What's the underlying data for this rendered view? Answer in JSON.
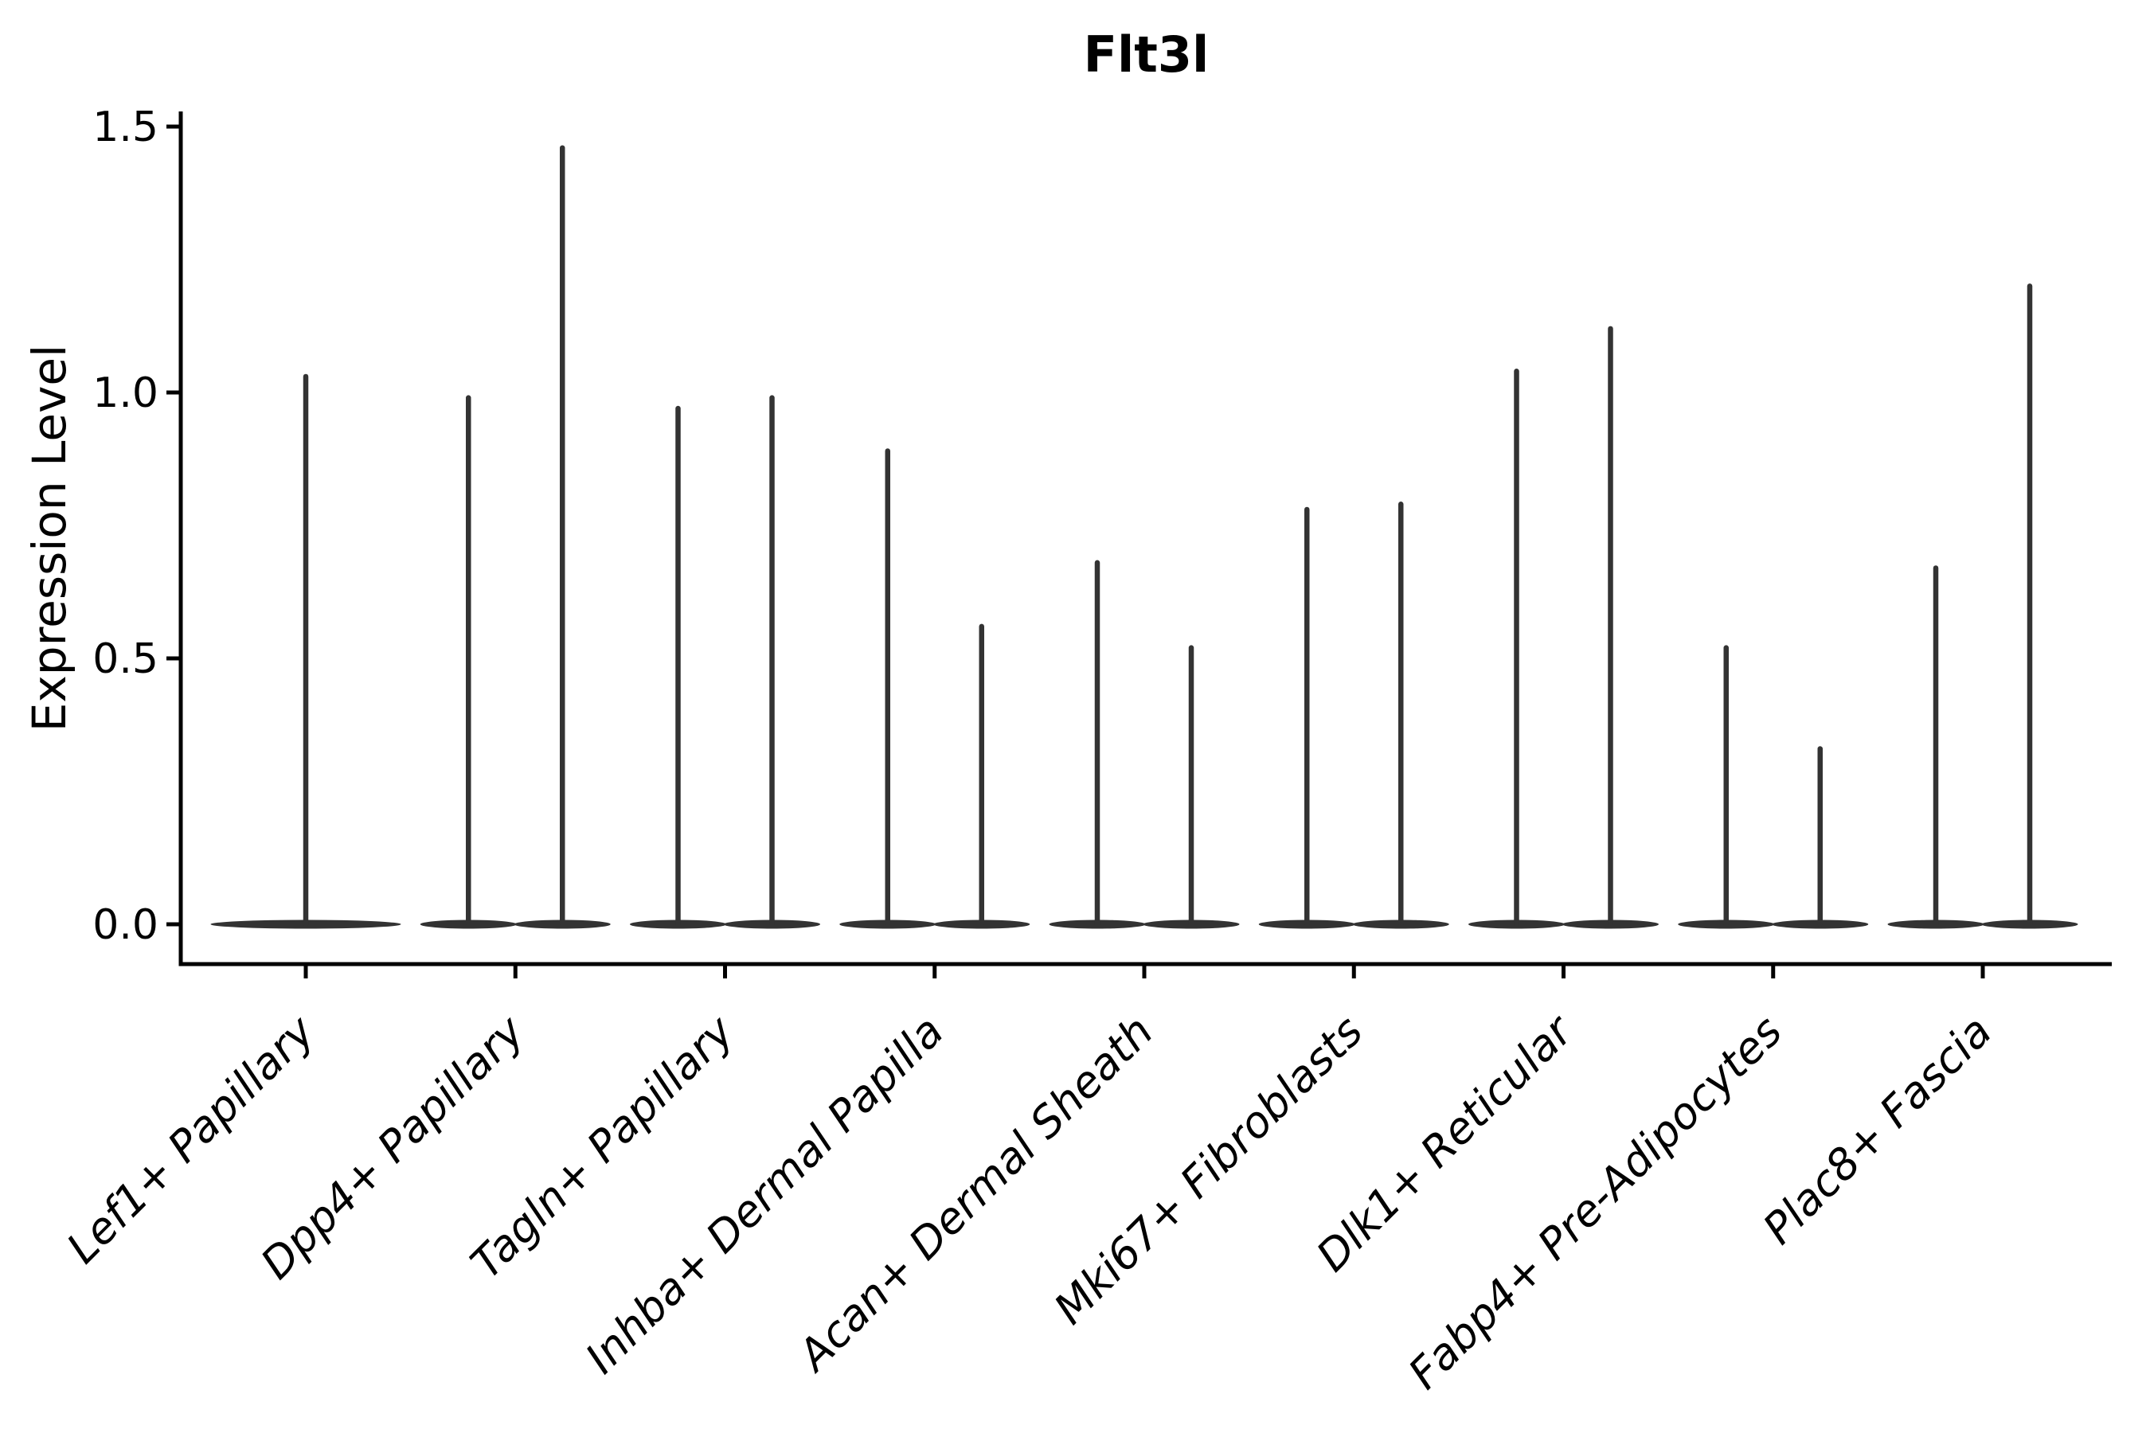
{
  "figure": {
    "title": "Flt3l",
    "ylabel": "Expression Level"
  },
  "chart_data": {
    "type": "violin",
    "title": "Flt3l",
    "xlabel": "",
    "ylabel": "Expression Level",
    "yticks": [
      0.0,
      0.5,
      1.0,
      1.5
    ],
    "ylim": [
      -0.07,
      1.57
    ],
    "grid": false,
    "legend": "none",
    "line_color": "#333333",
    "axis_color": "#000000",
    "background_color": "#ffffff",
    "categories": [
      "Lef1+ Papillary",
      "Dpp4+ Papillary",
      "Tagln+ Papillary",
      "Inhba+ Dermal Papilla",
      "Acan+ Dermal Sheath",
      "Mki67+ Fibroblasts",
      "Dlk1+ Reticular",
      "Fabp4+ Pre-Adipocytes",
      "Plac8+ Fascia"
    ],
    "violins": [
      {
        "category": "Lef1+ Papillary",
        "max_expression": [
          1.03
        ]
      },
      {
        "category": "Dpp4+ Papillary",
        "max_expression": [
          0.99,
          1.46
        ]
      },
      {
        "category": "Tagln+ Papillary",
        "max_expression": [
          0.97,
          0.99
        ]
      },
      {
        "category": "Inhba+ Dermal Papilla",
        "max_expression": [
          0.89,
          0.56
        ]
      },
      {
        "category": "Acan+ Dermal Sheath",
        "max_expression": [
          0.68,
          0.52
        ]
      },
      {
        "category": "Mki67+ Fibroblasts",
        "max_expression": [
          0.78,
          0.79
        ]
      },
      {
        "category": "Dlk1+ Reticular",
        "max_expression": [
          1.04,
          1.12
        ]
      },
      {
        "category": "Fabp4+ Pre-Adipocytes",
        "max_expression": [
          0.52,
          0.33
        ]
      },
      {
        "category": "Plac8+ Fascia",
        "max_expression": [
          0.67,
          1.2
        ]
      }
    ],
    "description": "Violin plot of Flt3l expression level per cell type; expression is near zero for most cells (flat violin bodies at 0) with thin density spikes reaching the listed maxima. Categories 2-9 show two sub-violins each; category 1 shows a single centered violin."
  }
}
